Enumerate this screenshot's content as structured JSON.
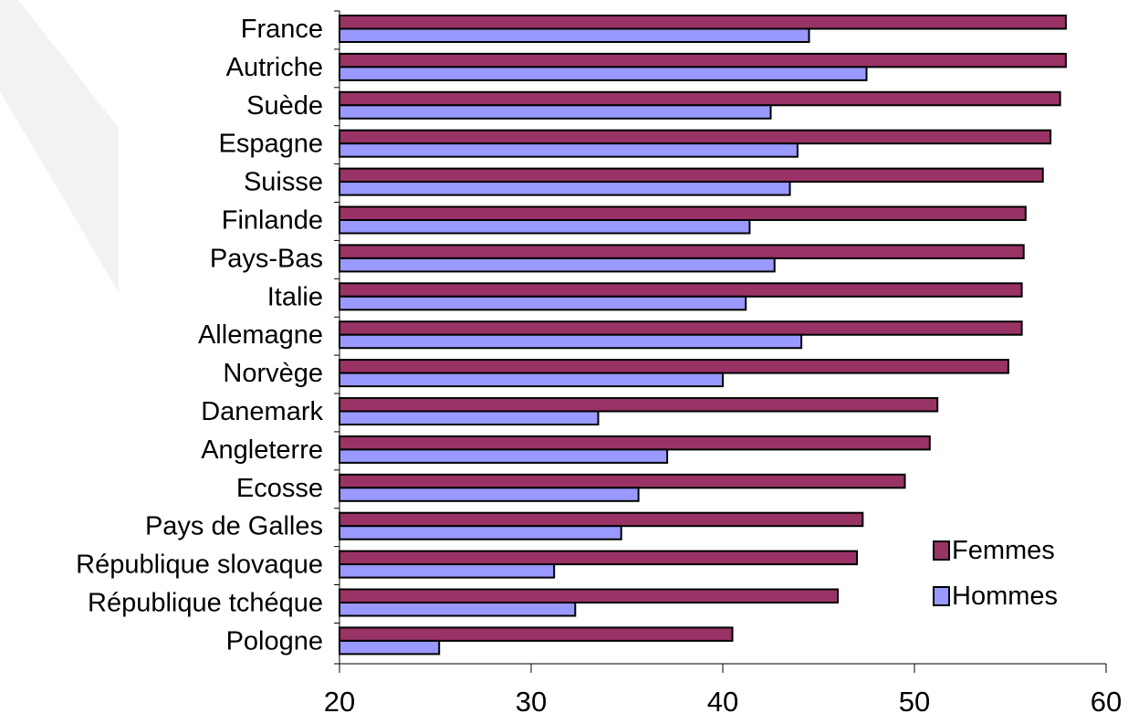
{
  "chart_data": {
    "type": "bar",
    "orientation": "horizontal",
    "categories": [
      "France",
      "Autriche",
      "Suède",
      "Espagne",
      "Suisse",
      "Finlande",
      "Pays-Bas",
      "Italie",
      "Allemagne",
      "Norvège",
      "Danemark",
      "Angleterre",
      "Ecosse",
      "Pays de Galles",
      "République slovaque",
      "République tchéque",
      "Pologne"
    ],
    "series": [
      {
        "name": "Femmes",
        "color": "#993366",
        "values": [
          57.9,
          57.9,
          57.6,
          57.1,
          56.7,
          55.8,
          55.7,
          55.6,
          55.6,
          54.9,
          51.2,
          50.8,
          49.5,
          47.3,
          47.0,
          46.0,
          40.5
        ]
      },
      {
        "name": "Hommes",
        "color": "#9999FF",
        "values": [
          44.5,
          47.5,
          42.5,
          43.9,
          43.5,
          41.4,
          42.7,
          41.2,
          44.1,
          40.0,
          33.5,
          37.1,
          35.6,
          34.7,
          31.2,
          32.3,
          25.2
        ]
      }
    ],
    "xlim": [
      20,
      60
    ],
    "x_ticks": [
      "20",
      "30",
      "40",
      "50",
      "60"
    ],
    "grid": false,
    "legend_position": "bottom-right",
    "legend": [
      {
        "name": "Femmes",
        "color": "#993366"
      },
      {
        "name": "Hommes",
        "color": "#9999FF"
      }
    ],
    "title": "",
    "xlabel": "",
    "ylabel": ""
  }
}
